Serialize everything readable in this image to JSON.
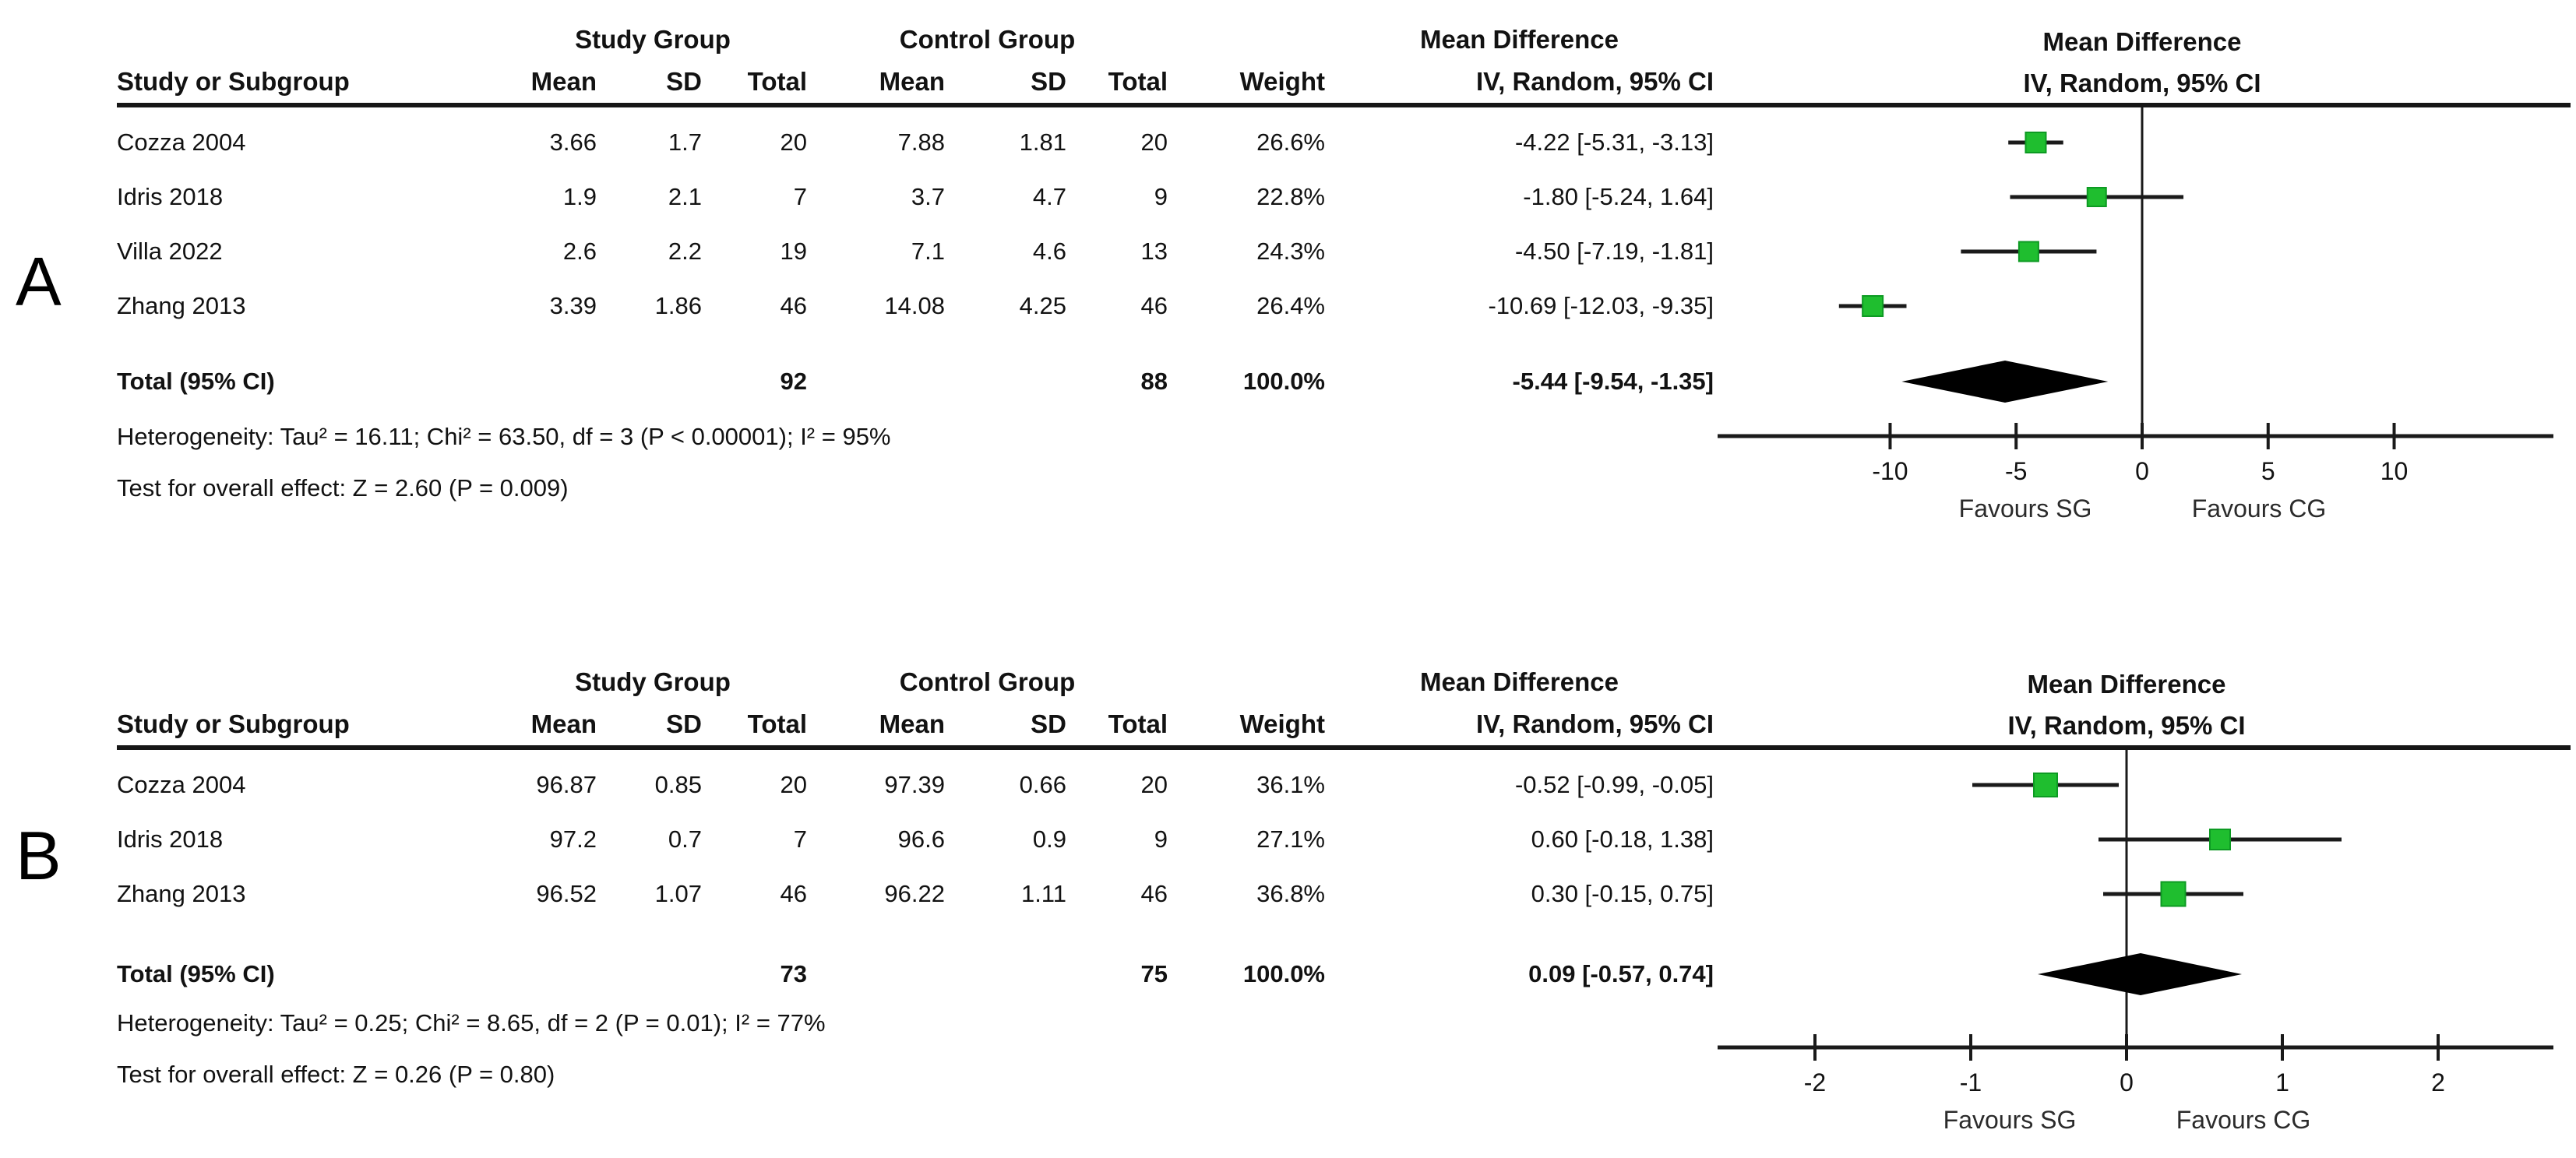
{
  "chart_data": [
    {
      "type": "forest",
      "panel_label": "A",
      "group_headers": {
        "study": "Study Group",
        "control": "Control Group",
        "effect": "Mean Difference"
      },
      "plot_header": {
        "line1": "Mean Difference",
        "line2": "IV, Random, 95% CI"
      },
      "columns": {
        "study": "Study or Subgroup",
        "mean1": "Mean",
        "sd1": "SD",
        "total1": "Total",
        "mean2": "Mean",
        "sd2": "SD",
        "total2": "Total",
        "weight": "Weight",
        "ci": "IV, Random, 95% CI"
      },
      "studies": [
        {
          "name": "Cozza 2004",
          "sg_mean": "3.66",
          "sg_sd": "1.7",
          "sg_total": "20",
          "cg_mean": "7.88",
          "cg_sd": "1.81",
          "cg_total": "20",
          "weight": "26.6%",
          "weight_pct": 26.6,
          "ci_label": "-4.22 [-5.31, -3.13]",
          "est": -4.22,
          "ci_lo": -5.31,
          "ci_hi": -3.13
        },
        {
          "name": "Idris 2018",
          "sg_mean": "1.9",
          "sg_sd": "2.1",
          "sg_total": "7",
          "cg_mean": "3.7",
          "cg_sd": "4.7",
          "cg_total": "9",
          "weight": "22.8%",
          "weight_pct": 22.8,
          "ci_label": "-1.80 [-5.24, 1.64]",
          "est": -1.8,
          "ci_lo": -5.24,
          "ci_hi": 1.64
        },
        {
          "name": "Villa 2022",
          "sg_mean": "2.6",
          "sg_sd": "2.2",
          "sg_total": "19",
          "cg_mean": "7.1",
          "cg_sd": "4.6",
          "cg_total": "13",
          "weight": "24.3%",
          "weight_pct": 24.3,
          "ci_label": "-4.50 [-7.19, -1.81]",
          "est": -4.5,
          "ci_lo": -7.19,
          "ci_hi": -1.81
        },
        {
          "name": "Zhang 2013",
          "sg_mean": "3.39",
          "sg_sd": "1.86",
          "sg_total": "46",
          "cg_mean": "14.08",
          "cg_sd": "4.25",
          "cg_total": "46",
          "weight": "26.4%",
          "weight_pct": 26.4,
          "ci_label": "-10.69 [-12.03, -9.35]",
          "est": -10.69,
          "ci_lo": -12.03,
          "ci_hi": -9.35
        }
      ],
      "total": {
        "label": "Total (95% CI)",
        "sg_total": "92",
        "cg_total": "88",
        "weight": "100.0%",
        "ci_label": "-5.44 [-9.54, -1.35]",
        "est": -5.44,
        "ci_lo": -9.54,
        "ci_hi": -1.35
      },
      "heterogeneity": "Heterogeneity: Tau² = 16.11; Chi² = 63.50, df = 3 (P < 0.00001); I² = 95%",
      "overall_effect": "Test for overall effect: Z = 2.60 (P = 0.009)",
      "axis": {
        "min": -17,
        "max": 17,
        "ticks": [
          -10,
          -5,
          0,
          5,
          10
        ],
        "favours_left": "Favours SG",
        "favours_right": "Favours CG"
      }
    },
    {
      "type": "forest",
      "panel_label": "B",
      "group_headers": {
        "study": "Study Group",
        "control": "Control Group",
        "effect": "Mean Difference"
      },
      "plot_header": {
        "line1": "Mean Difference",
        "line2": "IV, Random, 95% CI"
      },
      "columns": {
        "study": "Study or Subgroup",
        "mean1": "Mean",
        "sd1": "SD",
        "total1": "Total",
        "mean2": "Mean",
        "sd2": "SD",
        "total2": "Total",
        "weight": "Weight",
        "ci": "IV, Random, 95% CI"
      },
      "studies": [
        {
          "name": "Cozza 2004",
          "sg_mean": "96.87",
          "sg_sd": "0.85",
          "sg_total": "20",
          "cg_mean": "97.39",
          "cg_sd": "0.66",
          "cg_total": "20",
          "weight": "36.1%",
          "weight_pct": 36.1,
          "ci_label": "-0.52 [-0.99, -0.05]",
          "est": -0.52,
          "ci_lo": -0.99,
          "ci_hi": -0.05
        },
        {
          "name": "Idris 2018",
          "sg_mean": "97.2",
          "sg_sd": "0.7",
          "sg_total": "7",
          "cg_mean": "96.6",
          "cg_sd": "0.9",
          "cg_total": "9",
          "weight": "27.1%",
          "weight_pct": 27.1,
          "ci_label": "0.60 [-0.18, 1.38]",
          "est": 0.6,
          "ci_lo": -0.18,
          "ci_hi": 1.38
        },
        {
          "name": "Zhang 2013",
          "sg_mean": "96.52",
          "sg_sd": "1.07",
          "sg_total": "46",
          "cg_mean": "96.22",
          "cg_sd": "1.11",
          "cg_total": "46",
          "weight": "36.8%",
          "weight_pct": 36.8,
          "ci_label": "0.30 [-0.15, 0.75]",
          "est": 0.3,
          "ci_lo": -0.15,
          "ci_hi": 0.75
        }
      ],
      "total": {
        "label": "Total (95% CI)",
        "sg_total": "73",
        "cg_total": "75",
        "weight": "100.0%",
        "ci_label": "0.09 [-0.57, 0.74]",
        "est": 0.09,
        "ci_lo": -0.57,
        "ci_hi": 0.74
      },
      "heterogeneity": "Heterogeneity: Tau² = 0.25; Chi² = 8.65, df = 2 (P = 0.01); I² = 77%",
      "overall_effect": "Test for overall effect: Z = 0.26 (P = 0.80)",
      "axis": {
        "min": -2.65,
        "max": 2.85,
        "ticks": [
          -2,
          -1,
          0,
          1,
          2
        ],
        "favours_left": "Favours SG",
        "favours_right": "Favours CG"
      }
    }
  ],
  "colors": {
    "marker": "#1fbe2f",
    "marker_border": "#0d9a23",
    "diamond": "#000000",
    "line": "#1a1a1a",
    "text": "#121212"
  }
}
